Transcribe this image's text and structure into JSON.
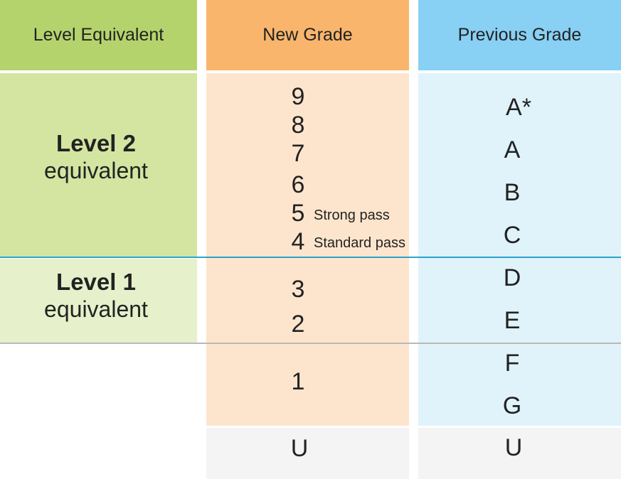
{
  "headers": {
    "level": "Level Equivalent",
    "new_grade": "New Grade",
    "previous_grade": "Previous Grade"
  },
  "level2": {
    "bold": "Level 2",
    "normal": "equivalent"
  },
  "level1": {
    "bold": "Level 1",
    "normal": "equivalent"
  },
  "new_grades": [
    "9",
    "8",
    "7",
    "6",
    "5",
    "4",
    "3",
    "2",
    "1",
    "U"
  ],
  "notes": {
    "strong": "Strong pass",
    "standard": "Standard pass"
  },
  "previous_grades": [
    "A*",
    "A",
    "B",
    "C",
    "D",
    "E",
    "F",
    "G",
    "U"
  ],
  "colors": {
    "level_header": "#b5d36c",
    "level2_band": "#d3e5a1",
    "level1_band": "#e6f0cb",
    "new_header": "#f9b56c",
    "new_band": "#fde5cd",
    "prev_header": "#88d0f4",
    "prev_band": "#e0f3fa",
    "u_band": "#f4f4f4",
    "level2_divider": "#2aa3cf",
    "level1_divider": "#b9b9b9"
  }
}
